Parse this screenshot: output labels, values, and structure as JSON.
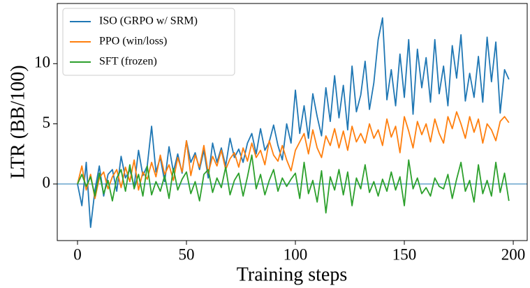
{
  "chart_data": {
    "type": "line",
    "xlabel": "Training steps",
    "ylabel": "LTR (BB/100)",
    "x": [
      0,
      2,
      4,
      6,
      8,
      10,
      12,
      14,
      16,
      18,
      20,
      22,
      24,
      26,
      28,
      30,
      32,
      34,
      36,
      38,
      40,
      42,
      44,
      46,
      48,
      50,
      52,
      54,
      56,
      58,
      60,
      62,
      64,
      66,
      68,
      70,
      72,
      74,
      76,
      78,
      80,
      82,
      84,
      86,
      88,
      90,
      92,
      94,
      96,
      98,
      100,
      102,
      104,
      106,
      108,
      110,
      112,
      114,
      116,
      118,
      120,
      122,
      124,
      126,
      128,
      130,
      132,
      134,
      136,
      138,
      140,
      142,
      144,
      146,
      148,
      150,
      152,
      154,
      156,
      158,
      160,
      162,
      164,
      166,
      168,
      170,
      172,
      174,
      176,
      178,
      180,
      182,
      184,
      186,
      188,
      190,
      192,
      194,
      196,
      198
    ],
    "series": [
      {
        "name": "ISO (GRPO w/ SRM)",
        "color": "#1f77b4",
        "values": [
          0,
          -1.8,
          1.8,
          -3.6,
          -0.5,
          1.5,
          -1,
          0.8,
          1.2,
          -0.6,
          2.3,
          0.5,
          1.2,
          -0.2,
          2.8,
          0.7,
          1.5,
          4.8,
          1.0,
          2.2,
          0.2,
          3.1,
          1.0,
          2.5,
          0.9,
          3.6,
          1.8,
          2.6,
          1.2,
          2.8,
          0.5,
          3.4,
          1.8,
          3.0,
          1.5,
          3.8,
          2.2,
          2.9,
          1.8,
          3.4,
          4.2,
          2.5,
          4.6,
          2.8,
          3.5,
          4.9,
          3.2,
          2.0,
          5.0,
          3.4,
          7.8,
          4.2,
          6.5,
          3.8,
          7.5,
          5.6,
          4.0,
          8.0,
          5.2,
          9.0,
          5.5,
          8.2,
          4.5,
          9.8,
          6.0,
          7.4,
          10.2,
          6.2,
          8.4,
          12.0,
          13.8,
          7.0,
          9.5,
          6.5,
          10.8,
          7.2,
          12.0,
          5.8,
          11.2,
          8.0,
          10.5,
          6.8,
          12.0,
          7.5,
          9.8,
          6.5,
          11.5,
          8.8,
          12.4,
          6.9,
          9.2,
          7.2,
          10.6,
          6.8,
          12.2,
          8.5,
          11.8,
          5.9,
          9.5,
          8.7
        ]
      },
      {
        "name": "PPO (win/loss)",
        "color": "#ff7f0e",
        "values": [
          0,
          1.5,
          -0.5,
          0.8,
          -1.2,
          0.5,
          1.0,
          -0.4,
          0.6,
          1.2,
          -0.3,
          1.4,
          0.2,
          2.0,
          -0.5,
          1.0,
          0.4,
          1.8,
          0.6,
          2.4,
          0.8,
          1.6,
          0.3,
          2.2,
          1.0,
          3.6,
          0.7,
          2.4,
          1.4,
          3.2,
          0.9,
          2.3,
          1.5,
          2.8,
          1.2,
          2.1,
          2.6,
          1.4,
          3.0,
          1.9,
          3.4,
          2.2,
          2.8,
          1.6,
          3.6,
          2.4,
          1.9,
          3.2,
          2.0,
          1.1,
          2.8,
          3.5,
          4.2,
          2.5,
          4.5,
          3.0,
          2.2,
          4.0,
          3.2,
          4.6,
          3.0,
          4.4,
          2.8,
          4.8,
          3.5,
          4.2,
          3.4,
          5.0,
          3.8,
          4.5,
          3.2,
          5.4,
          3.9,
          4.8,
          2.6,
          5.6,
          4.4,
          3.0,
          5.2,
          4.1,
          5.0,
          3.5,
          5.4,
          4.2,
          3.4,
          5.6,
          4.6,
          6.0,
          5.0,
          3.8,
          5.6,
          4.3,
          5.4,
          3.4,
          5.0,
          4.5,
          3.6,
          5.2,
          5.6,
          5.1
        ]
      },
      {
        "name": "SFT (frozen)",
        "color": "#2ca02c",
        "values": [
          0,
          0.8,
          -0.2,
          0.6,
          -1.0,
          0.9,
          -0.8,
          0.3,
          -1.4,
          0.5,
          1.2,
          -0.6,
          1.6,
          -0.4,
          0.8,
          -1.0,
          1.5,
          -0.9,
          0.2,
          -0.6,
          0.7,
          -1.2,
          1.3,
          -0.5,
          0.4,
          1.0,
          -0.8,
          0.2,
          -1.4,
          0.8,
          1.2,
          -0.7,
          0.5,
          -0.3,
          1.4,
          -0.9,
          0.3,
          0.9,
          -1.0,
          0.6,
          2.4,
          -0.4,
          0.8,
          -0.9,
          0.3,
          1.2,
          -0.6,
          0.5,
          -0.2,
          0.4,
          0.9,
          -1.2,
          1.8,
          -0.8,
          0.3,
          -1.5,
          1.1,
          -2.4,
          0.6,
          -0.5,
          1.2,
          -0.9,
          1.0,
          -1.8,
          0.5,
          -0.4,
          1.6,
          -0.7,
          0.2,
          -1.0,
          0.4,
          -0.6,
          1.0,
          -0.5,
          0.6,
          -1.8,
          2.0,
          -0.4,
          0.5,
          -0.8,
          -0.3,
          -1.0,
          0.5,
          -0.2,
          -0.4,
          0.8,
          -1.2,
          0.4,
          1.8,
          -0.6,
          0.3,
          -1.5,
          1.6,
          -0.8,
          0.3,
          -1.0,
          1.8,
          -0.7,
          0.9,
          -1.4
        ]
      }
    ],
    "hline": 0,
    "hline_color": "#1f77b4",
    "xlim": [
      -9.3,
      206.4
    ],
    "ylim": [
      -4.7,
      15.0
    ],
    "xticks": [
      0,
      50,
      100,
      150,
      200
    ],
    "yticks": [
      0,
      5,
      10
    ],
    "grid": false,
    "legend": "upper left"
  }
}
